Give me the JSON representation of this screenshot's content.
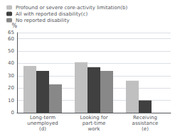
{
  "chart_data": {
    "type": "bar",
    "categories": [
      "Long-term\nunemployed\n(d)",
      "Looking for\npart-time\nwork",
      "Receiving\nassistance\n(e)"
    ],
    "series": [
      {
        "name": "Profound or severe core-activity limitation(b)",
        "color": "#c0c0c0",
        "values": [
          38,
          41,
          26
        ]
      },
      {
        "name": "All with reported disability(c)",
        "color": "#404040",
        "values": [
          34,
          37,
          10
        ]
      },
      {
        "name": "No reported disability",
        "color": "#888888",
        "values": [
          23,
          34,
          0
        ]
      }
    ],
    "ylabel": "%",
    "ylim": [
      0,
      65
    ],
    "yticks": [
      0,
      10,
      20,
      30,
      40,
      50,
      60
    ],
    "grid": true,
    "legend": "upper left"
  }
}
